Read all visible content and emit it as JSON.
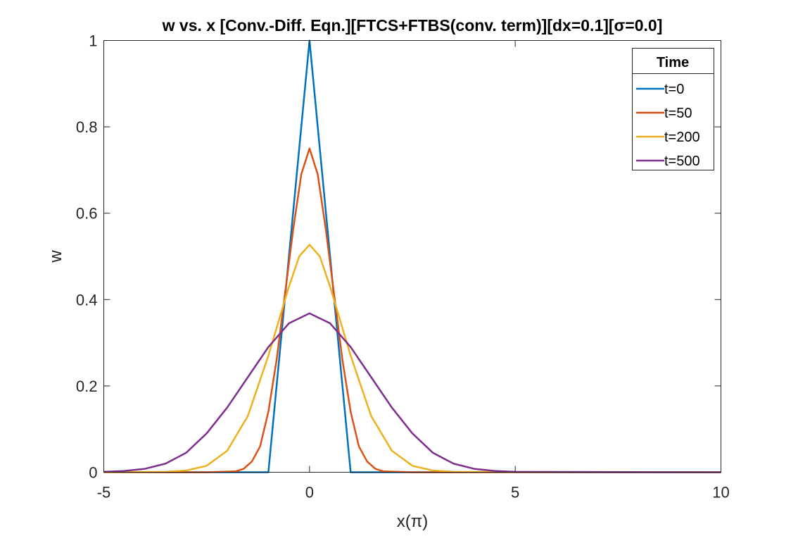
{
  "chart_data": {
    "type": "line",
    "title": "w vs. x [Conv.-Diff. Eqn.][FTCS+FTBS(conv. term)][dx=0.1][σ=0.0]",
    "xlabel": "x(π)",
    "ylabel": "w",
    "xlim": [
      -5,
      10
    ],
    "ylim": [
      0,
      1
    ],
    "xticks": [
      -5,
      0,
      5,
      10
    ],
    "yticks": [
      0,
      0.2,
      0.4,
      0.6,
      0.8,
      1
    ],
    "xtick_labels": [
      "-5",
      "0",
      "5",
      "10"
    ],
    "ytick_labels": [
      "0",
      "0.2",
      "0.4",
      "0.6",
      "0.8",
      "1"
    ],
    "grid": false,
    "legend": {
      "title": "Time",
      "placement": "top-right"
    },
    "series": [
      {
        "name": "t=0",
        "color": "#0072BD",
        "x": [
          -5,
          -1,
          0,
          1,
          10
        ],
        "y": [
          0,
          0,
          1,
          0,
          0
        ]
      },
      {
        "name": "t=50",
        "color": "#D95319",
        "x": [
          -5,
          -2.5,
          -1.8,
          -1.6,
          -1.4,
          -1.2,
          -1.0,
          -0.8,
          -0.6,
          -0.4,
          -0.2,
          0,
          0.2,
          0.4,
          0.6,
          0.8,
          1.0,
          1.2,
          1.4,
          1.6,
          1.8,
          2.5,
          10
        ],
        "y": [
          0,
          0,
          0.002,
          0.008,
          0.025,
          0.06,
          0.14,
          0.26,
          0.41,
          0.56,
          0.69,
          0.75,
          0.69,
          0.56,
          0.41,
          0.26,
          0.14,
          0.06,
          0.025,
          0.008,
          0.002,
          0,
          0
        ]
      },
      {
        "name": "t=200",
        "color": "#EDB120",
        "x": [
          -5,
          -3.5,
          -3.0,
          -2.5,
          -2.0,
          -1.5,
          -1.0,
          -0.75,
          -0.5,
          -0.25,
          0,
          0.25,
          0.5,
          0.75,
          1.0,
          1.5,
          2.0,
          2.5,
          3.0,
          3.5,
          10
        ],
        "y": [
          0,
          0.001,
          0.004,
          0.015,
          0.05,
          0.13,
          0.27,
          0.35,
          0.43,
          0.5,
          0.527,
          0.5,
          0.43,
          0.35,
          0.27,
          0.13,
          0.05,
          0.015,
          0.004,
          0.001,
          0
        ]
      },
      {
        "name": "t=500",
        "color": "#7E2F8E",
        "x": [
          -5,
          -4.5,
          -4.0,
          -3.5,
          -3.0,
          -2.5,
          -2.0,
          -1.5,
          -1.0,
          -0.5,
          0,
          0.5,
          1.0,
          1.5,
          2.0,
          2.5,
          3.0,
          3.5,
          4.0,
          4.5,
          5.0,
          10
        ],
        "y": [
          0.001,
          0.003,
          0.008,
          0.02,
          0.045,
          0.09,
          0.15,
          0.22,
          0.29,
          0.345,
          0.368,
          0.345,
          0.29,
          0.22,
          0.15,
          0.09,
          0.045,
          0.02,
          0.008,
          0.003,
          0.001,
          0
        ]
      }
    ]
  }
}
